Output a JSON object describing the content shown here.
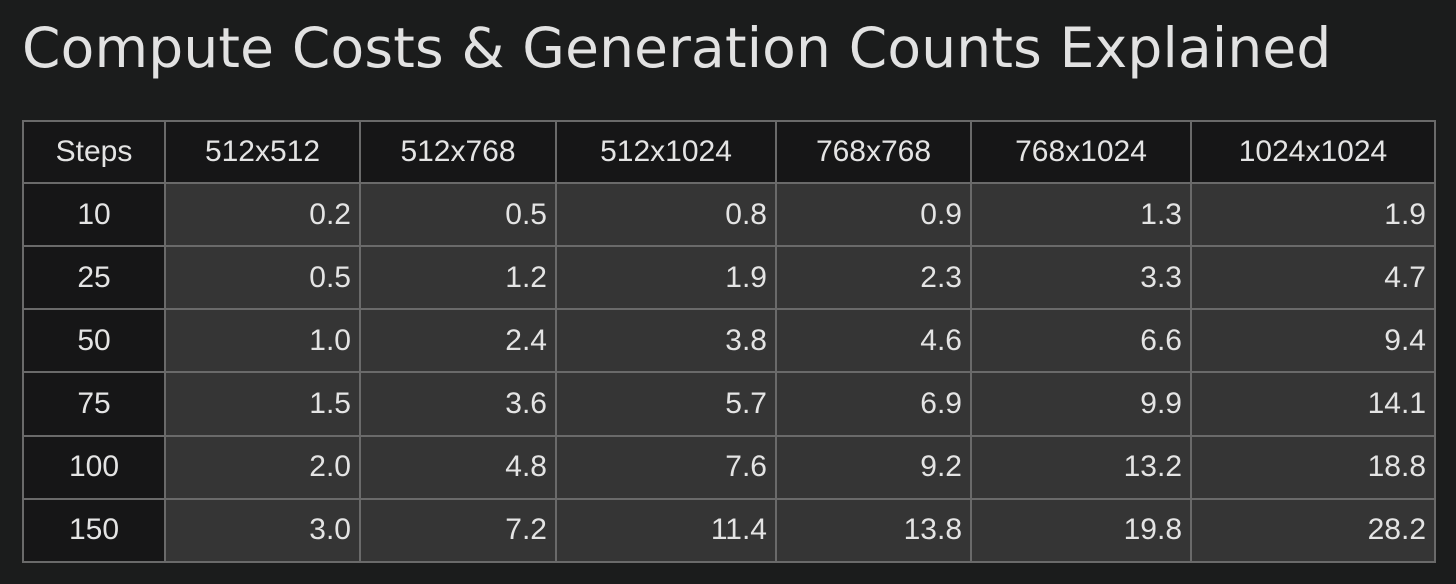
{
  "title": "Compute Costs & Generation Counts Explained",
  "table": {
    "headers": [
      "Steps",
      "512x512",
      "512x768",
      "512x1024",
      "768x768",
      "768x1024",
      "1024x1024"
    ],
    "rows": [
      {
        "steps": "10",
        "values": [
          "0.2",
          "0.5",
          "0.8",
          "0.9",
          "1.3",
          "1.9"
        ]
      },
      {
        "steps": "25",
        "values": [
          "0.5",
          "1.2",
          "1.9",
          "2.3",
          "3.3",
          "4.7"
        ]
      },
      {
        "steps": "50",
        "values": [
          "1.0",
          "2.4",
          "3.8",
          "4.6",
          "6.6",
          "9.4"
        ]
      },
      {
        "steps": "75",
        "values": [
          "1.5",
          "3.6",
          "5.7",
          "6.9",
          "9.9",
          "14.1"
        ]
      },
      {
        "steps": "100",
        "values": [
          "2.0",
          "4.8",
          "7.6",
          "9.2",
          "13.2",
          "18.8"
        ]
      },
      {
        "steps": "150",
        "values": [
          "3.0",
          "7.2",
          "11.4",
          "13.8",
          "19.8",
          "28.2"
        ]
      }
    ]
  },
  "colors": {
    "background": "#1b1c1c",
    "header_cell": "#161617",
    "value_cell": "#353535",
    "grid": "#6a6a6a",
    "text": "#e4e4e4"
  }
}
